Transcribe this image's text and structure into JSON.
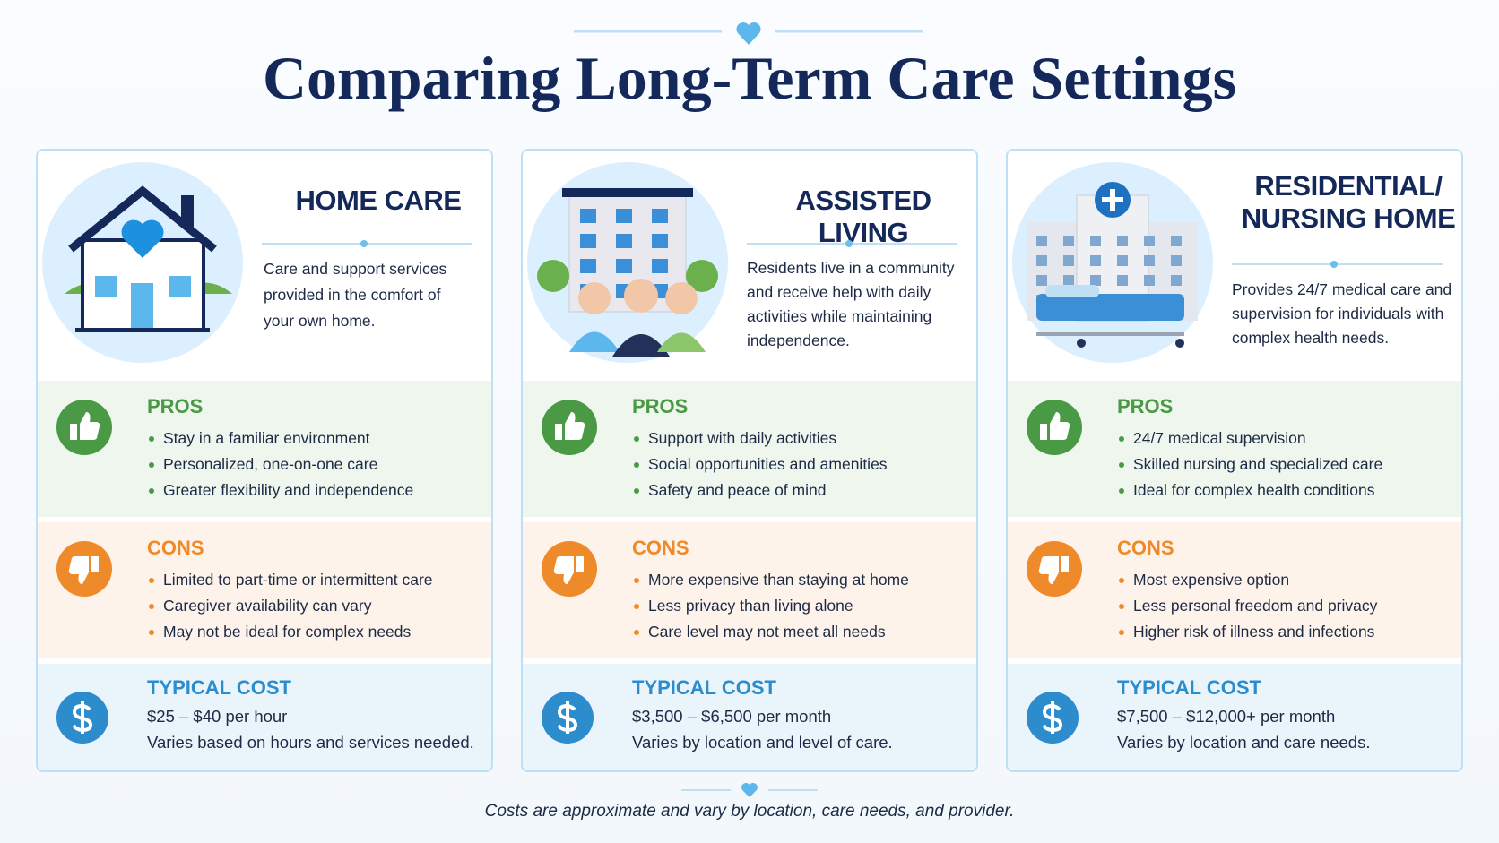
{
  "header": {
    "title": "Comparing Long-Term Care Settings"
  },
  "cards": [
    {
      "title": "HOME CARE",
      "description": "Care and support services provided in the comfort of your own home.",
      "pros": {
        "heading": "PROS",
        "items": [
          "Stay in a familiar environment",
          "Personalized, one-on-one care",
          "Greater flexibility and independence"
        ]
      },
      "cons": {
        "heading": "CONS",
        "items": [
          "Limited to part-time or intermittent care",
          "Caregiver availability can vary",
          "May not be ideal for complex needs"
        ]
      },
      "cost": {
        "heading": "TYPICAL COST",
        "range": "$25 – $40 per hour",
        "note": "Varies based on hours and services needed."
      }
    },
    {
      "title": "ASSISTED LIVING",
      "description": "Residents live in a community and receive help with daily activities while maintaining independence.",
      "pros": {
        "heading": "PROS",
        "items": [
          "Support with daily activities",
          "Social opportunities and amenities",
          "Safety and peace of mind"
        ]
      },
      "cons": {
        "heading": "CONS",
        "items": [
          "More expensive than staying at home",
          "Less privacy than living alone",
          "Care level may not meet all needs"
        ]
      },
      "cost": {
        "heading": "TYPICAL COST",
        "range": "$3,500 – $6,500 per month",
        "note": "Varies by location and level of care."
      }
    },
    {
      "title": "RESIDENTIAL/ NURSING HOME",
      "description": "Provides 24/7 medical care and supervision for individuals with complex health needs.",
      "pros": {
        "heading": "PROS",
        "items": [
          "24/7 medical supervision",
          "Skilled nursing and specialized care",
          "Ideal for complex health conditions"
        ]
      },
      "cons": {
        "heading": "CONS",
        "items": [
          "Most expensive option",
          "Less personal freedom and privacy",
          "Higher risk of illness and infections"
        ]
      },
      "cost": {
        "heading": "TYPICAL COST",
        "range": "$7,500 – $12,000+ per month",
        "note": "Varies by location and care needs."
      }
    }
  ],
  "footer": {
    "note": "Costs are approximate and vary by location, care needs, and provider."
  }
}
